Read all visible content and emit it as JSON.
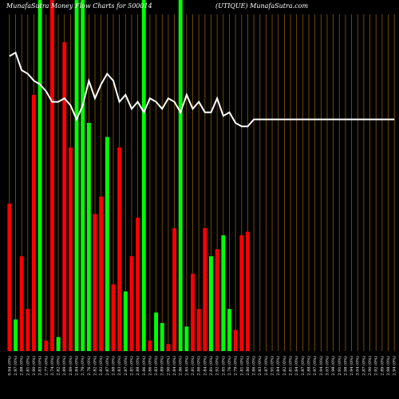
{
  "chart_data": {
    "type": "bar",
    "title_left": "MunafaSutra  Money Flow  Charts for 500014",
    "title_right": "(UTIQUE) MunafaSutra.com",
    "colors": {
      "background": "#000000",
      "up": "#00ff00",
      "down": "#ff0000",
      "grid": "#8b5a00",
      "line": "#ffffff",
      "text": "#ffffff"
    },
    "grid": true,
    "ylim": [
      0,
      100
    ],
    "x": [
      "0.94 (0%)",
      "2.97 (0%)",
      "2.88 (0%)",
      "2.81 (0%)",
      "2.90 (0%)",
      "2.83 (0%)",
      "2.77 (0%)",
      "2.74 (0%)",
      "2.82 (0%)",
      "2.89 (0%)",
      "2.89 (0%)",
      "2.84 (0%)",
      "2.79 (0%)",
      "2.76 (0%)",
      "2.82 (0%)",
      "2.82 (0%)",
      "2.87 (0%)",
      "2.88 (0%)",
      "2.83 (0%)",
      "2.87 (0%)",
      "2.81 (0%)",
      "2.88 (0%)",
      "2.86 (0%)",
      "2.86 (0%)",
      "2.83 (0%)",
      "2.89 (0%)",
      "2.90 (0%)",
      "2.84 (0%)",
      "2.86 (0%)",
      "2.85 (0%)",
      "2.81 (0%)",
      "2.86 (0%)",
      "2.84 (0%)",
      "2.81 (0%)",
      "2.92 (0%)",
      "2.85 (0%)",
      "2.76 (0%)",
      "2.79 (0%)",
      "2.81 (0%)",
      "2.80 (0%)",
      "2.86 (0%)",
      "2.83 (0%)",
      "2.87 (0%)",
      "2.91 (0%)",
      "2.84 (0%)",
      "2.82 (0%)",
      "2.81 (0%)",
      "2.84 (0%)",
      "2.87 (0%)",
      "2.88 (0%)",
      "2.97 (0%)",
      "2.94 (0%)",
      "3.03 (0%)",
      "2.98 (0%)",
      "2.91 (0%)",
      "2.98 (0%)",
      "2.94 (0%)",
      "3.04 (0%)",
      "2.87 (0%)",
      "2.90 (0%)",
      "2.92 (0%)",
      "2.89 (0%)",
      "2.98 (0%)",
      "2.94 (0%)"
    ],
    "series": [
      {
        "kind": "bars",
        "bar_direction": [
          "down",
          "up",
          "down",
          "down",
          "down",
          "up",
          "down",
          "down",
          "up",
          "down",
          "down",
          "up",
          "up",
          "up",
          "down",
          "down",
          "up",
          "down",
          "down",
          "up",
          "down",
          "down",
          "up",
          "down",
          "up",
          "up",
          "down",
          "down",
          "up",
          "up",
          "down",
          "down",
          "down",
          "up",
          "down",
          "up",
          "up",
          "down",
          "down",
          "down",
          "up",
          "up",
          "down",
          "down",
          "up",
          "down",
          "down",
          "up",
          "down",
          "up",
          "down",
          "up",
          "up",
          "up",
          "down",
          "down",
          "down",
          "up",
          "down",
          "up",
          "down",
          "down",
          "down",
          "up"
        ],
        "values": [
          42,
          9,
          27,
          12,
          73,
          100,
          3,
          100,
          4,
          88,
          58,
          100,
          100,
          65,
          39,
          44,
          61,
          19,
          58,
          17,
          27,
          38,
          100,
          3,
          11,
          8,
          2,
          35,
          100,
          7,
          22,
          12,
          35,
          27,
          29,
          33,
          12,
          6,
          33,
          34,
          0,
          0,
          0,
          0,
          0,
          0,
          0,
          0,
          0,
          0,
          0,
          0,
          0,
          0,
          0,
          0,
          0,
          0,
          0,
          0,
          0,
          0,
          0,
          0
        ]
      },
      {
        "kind": "line",
        "values": [
          84,
          85,
          80,
          79,
          77,
          76,
          74,
          71,
          71,
          72,
          70,
          66,
          70,
          77,
          72,
          76,
          79,
          77,
          71,
          73,
          69,
          71,
          68,
          72,
          71,
          69,
          72,
          71,
          68,
          73,
          69,
          71,
          68,
          68,
          72,
          67,
          68,
          65,
          64,
          64,
          66,
          66,
          66,
          66,
          66,
          66,
          66,
          66,
          66,
          66,
          66,
          66,
          66,
          66,
          66,
          66,
          66,
          66,
          66,
          66,
          66,
          66,
          66,
          66
        ]
      }
    ]
  }
}
